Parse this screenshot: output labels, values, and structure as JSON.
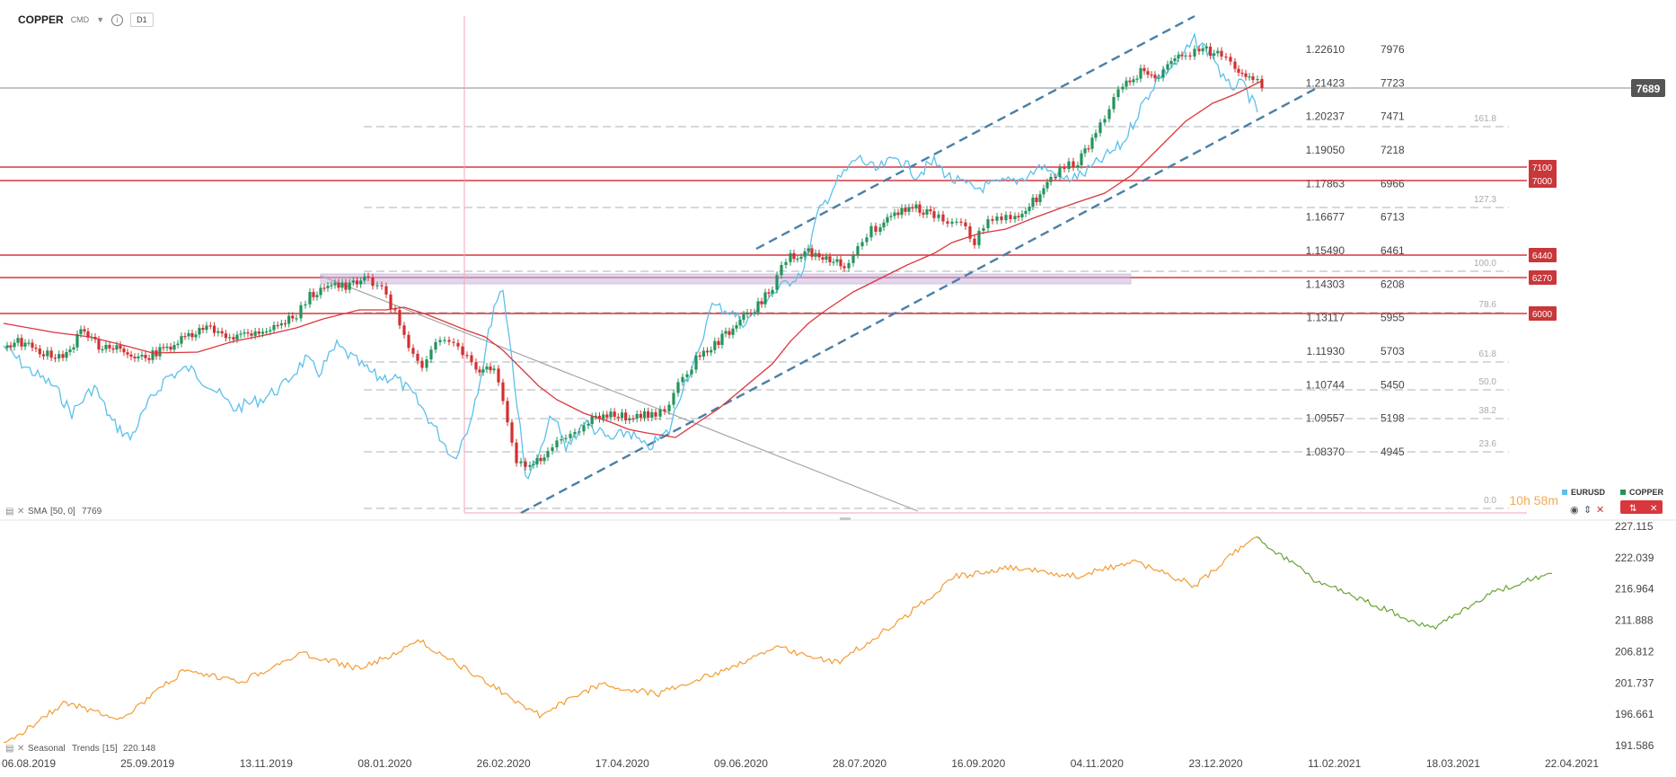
{
  "toolbar": {
    "symbol": "COPPER",
    "symbol_sub": "CMD",
    "timeframe": "D1",
    "info_glyph": "i"
  },
  "colors": {
    "copper_up": "#23935c",
    "copper_down": "#d32f2f",
    "eurusd": "#5bc0eb",
    "sma": "#d9363e",
    "resistance": "#d9363e",
    "channel": "#4a7fa6",
    "seasonal_orange": "#f39c33",
    "seasonal_green": "#6aa534"
  },
  "chart_data": [
    {
      "type": "line",
      "panel": "main",
      "title": "COPPER",
      "right_axis_primary": [
        "1.22610",
        "1.21423",
        "1.20237",
        "1.19050",
        "1.17863",
        "1.16677",
        "1.15490",
        "1.14303",
        "1.13117",
        "1.11930",
        "1.10744",
        "1.09557",
        "1.08370"
      ],
      "right_axis_secondary": [
        "7976",
        "7723",
        "7471",
        "7218",
        "6966",
        "6713",
        "6461",
        "6208",
        "5955",
        "5703",
        "5450",
        "5198",
        "4945"
      ],
      "current_price": "7689",
      "legend": [
        "EURUSD",
        "COPPER"
      ],
      "indicator_label": "SMA",
      "indicator_params": "[50, 0]",
      "indicator_value": "7769",
      "countdown": "10h 58m",
      "resistance_levels": [
        7100,
        7000,
        6440,
        6270,
        6000
      ],
      "fibonacci_levels": [
        "161.8",
        "127.3",
        "100.0",
        "78.6",
        "61.8",
        "50.0",
        "38.2",
        "23.6",
        "0.0"
      ],
      "series": [
        {
          "name": "COPPER",
          "values_x": [
            "06.08.2019",
            "25.09.2019",
            "13.11.2019",
            "08.01.2020",
            "26.02.2020",
            "17.04.2020",
            "09.06.2020",
            "28.07.2020",
            "16.09.2020",
            "04.11.2020",
            "23.12.2020",
            "11.02.2021"
          ],
          "values": [
            5650,
            5750,
            5900,
            6250,
            5550,
            5000,
            5800,
            6450,
            6600,
            6950,
            7800,
            7700
          ]
        },
        {
          "name": "EURUSD",
          "values_x": [
            "06.08.2019",
            "25.09.2019",
            "13.11.2019",
            "08.01.2020",
            "26.02.2020",
            "17.04.2020",
            "09.06.2020",
            "28.07.2020",
            "16.09.2020",
            "04.11.2020",
            "23.12.2020",
            "11.02.2021"
          ],
          "values": [
            1.118,
            1.093,
            1.104,
            1.113,
            1.089,
            1.085,
            1.13,
            1.18,
            1.185,
            1.178,
            1.222,
            1.206
          ]
        }
      ]
    },
    {
      "type": "line",
      "panel": "seasonal",
      "indicator_label": "Seasonal",
      "indicator_second": "Trends",
      "indicator_params": "[15]",
      "indicator_value": "220.148",
      "right_axis": [
        "227.115",
        "222.039",
        "216.964",
        "211.888",
        "206.812",
        "201.737",
        "196.661",
        "191.586"
      ],
      "x_labels": [
        "06.08.2019",
        "25.09.2019",
        "13.11.2019",
        "08.01.2020",
        "26.02.2020",
        "17.04.2020",
        "09.06.2020",
        "28.07.2020",
        "16.09.2020",
        "04.11.2020",
        "23.12.2020",
        "11.02.2021",
        "18.03.2021",
        "22.04.2021"
      ],
      "series": [
        {
          "name": "Seasonal",
          "values": [
            191.6,
            198.5,
            196.0,
            203.5,
            202.0,
            206.5,
            204.0,
            208.5,
            202.5,
            196.5,
            201.5,
            200.0,
            203.5,
            207.5,
            205.0,
            211.5,
            219.0,
            220.5,
            219.0,
            221.5,
            217.5,
            225.5,
            218.5,
            214.5,
            210.5,
            216.5,
            219.5
          ]
        }
      ]
    }
  ]
}
